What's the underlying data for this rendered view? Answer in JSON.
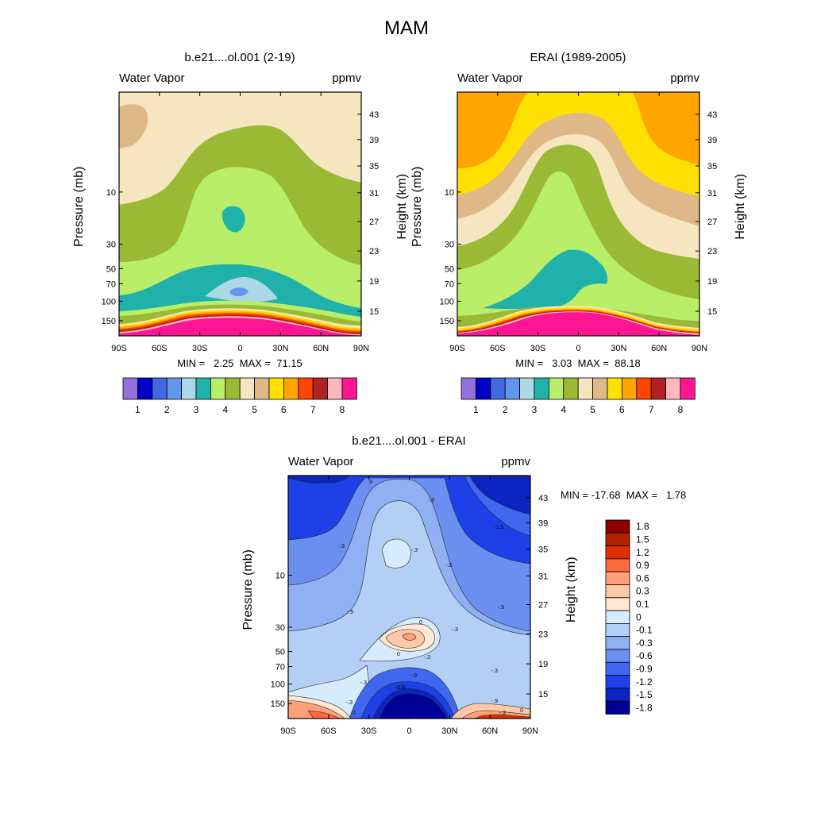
{
  "colors": {
    "wv_palette": [
      "#9370db",
      "#0000c8",
      "#4169e1",
      "#6495ed",
      "#add8e6",
      "#20b2aa",
      "#b8ee68",
      "#9aba36",
      "#f5e6c0",
      "#deb887",
      "#ffe000",
      "#ffa500",
      "#ff4500",
      "#b22222",
      "#ffb6c1",
      "#ff1493"
    ],
    "diff_palette": [
      "#8b0000",
      "#b22200",
      "#e03000",
      "#ff6a3d",
      "#ffa07a",
      "#ffc8a8",
      "#ffe8d4",
      "#d6ebfb",
      "#b4cff6",
      "#8fb0f3",
      "#6a8ff1",
      "#3f67ef",
      "#1d40e8",
      "#0b24c2",
      "#000096"
    ]
  },
  "figure": {
    "title": "MAM"
  },
  "panels": {
    "model": {
      "title": "b.e21....ol.001 (2-19)",
      "left_label": "Water Vapor",
      "right_label": "ppmv",
      "stats": "MIN =   2.25  MAX =  71.15",
      "colorbar_labels": [
        "1",
        "2",
        "3",
        "4",
        "5",
        "6",
        "7",
        "8"
      ]
    },
    "erai": {
      "title": "ERAI (1989-2005)",
      "left_label": "Water Vapor",
      "right_label": "ppmv",
      "stats": "MIN =   3.03  MAX =  88.18",
      "colorbar_labels": [
        "1",
        "2",
        "3",
        "4",
        "5",
        "6",
        "7",
        "8"
      ]
    },
    "diff": {
      "title": "b.e21....ol.001 - ERAI",
      "left_label": "Water Vapor",
      "right_label": "ppmv",
      "stats": "MIN = -17.68  MAX =   1.78",
      "colorbar_labels": [
        "1.8",
        "1.5",
        "1.2",
        "0.9",
        "0.6",
        "0.3",
        "0.1",
        "0",
        "-0.1",
        "-0.3",
        "-0.6",
        "-0.9",
        "-1.2",
        "-1.5",
        "-1.8"
      ],
      "contour_labels": [
        ".9",
        "-.9",
        "-1.5",
        "-.9",
        "-.3",
        "-1.5",
        "-.9",
        "-.3",
        "-.9",
        "-.3",
        "-.3",
        "0",
        "0",
        "-.3",
        "-.3",
        "-.9",
        "-.9",
        "-1.5",
        "-.3",
        "0",
        "-.3",
        "0"
      ]
    }
  },
  "chart_data": [
    {
      "type": "heatmap",
      "title": "b.e21....ol.001 (2-19)",
      "variable": "Water Vapor",
      "units": "ppmv",
      "xlabel": "",
      "ylabel": "Pressure (mb)",
      "y2label": "Height (km)",
      "x_ticks": [
        "90S",
        "60S",
        "30S",
        "0",
        "30N",
        "60N",
        "90N"
      ],
      "y_ticks": [
        "10",
        "30",
        "50",
        "70",
        "100",
        "150"
      ],
      "y2_ticks": [
        "43",
        "39",
        "35",
        "31",
        "27",
        "23",
        "19",
        "15"
      ],
      "levels": [
        1,
        2,
        3,
        4,
        5,
        6,
        7,
        8
      ],
      "min": 2.25,
      "max": 71.15
    },
    {
      "type": "heatmap",
      "title": "ERAI (1989-2005)",
      "variable": "Water Vapor",
      "units": "ppmv",
      "xlabel": "",
      "ylabel": "Pressure (mb)",
      "y2label": "Height (km)",
      "x_ticks": [
        "90S",
        "60S",
        "30S",
        "0",
        "30N",
        "60N",
        "90N"
      ],
      "y_ticks": [
        "10",
        "30",
        "50",
        "70",
        "100",
        "150"
      ],
      "y2_ticks": [
        "43",
        "39",
        "35",
        "31",
        "27",
        "23",
        "19",
        "15"
      ],
      "levels": [
        1,
        2,
        3,
        4,
        5,
        6,
        7,
        8
      ],
      "min": 3.03,
      "max": 88.18
    },
    {
      "type": "heatmap",
      "title": "b.e21....ol.001 - ERAI",
      "variable": "Water Vapor",
      "units": "ppmv",
      "xlabel": "",
      "ylabel": "Pressure (mb)",
      "y2label": "Height (km)",
      "x_ticks": [
        "90S",
        "60S",
        "30S",
        "0",
        "30N",
        "60N",
        "90N"
      ],
      "y_ticks": [
        "10",
        "30",
        "50",
        "70",
        "100",
        "150"
      ],
      "y2_ticks": [
        "43",
        "39",
        "35",
        "31",
        "27",
        "23",
        "19",
        "15"
      ],
      "levels": [
        1.8,
        1.5,
        1.2,
        0.9,
        0.6,
        0.3,
        0.1,
        0,
        -0.1,
        -0.3,
        -0.6,
        -0.9,
        -1.2,
        -1.5,
        -1.8
      ],
      "min": -17.68,
      "max": 1.78
    }
  ]
}
